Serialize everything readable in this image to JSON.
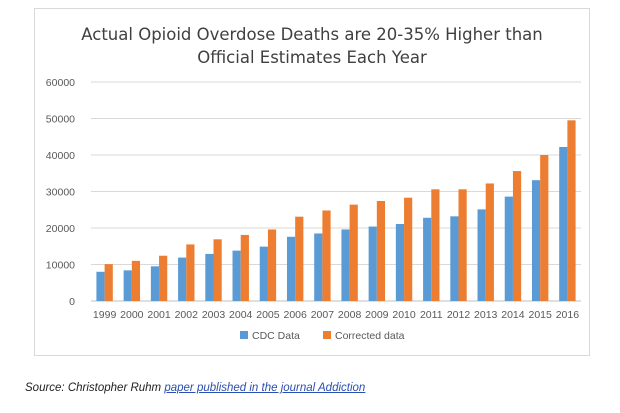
{
  "chart_data": {
    "type": "bar",
    "title_lines": [
      "Actual Opioid Overdose Deaths are 20-35% Higher than",
      "Official Estimates Each Year"
    ],
    "xlabel": "",
    "ylabel": "",
    "ylim": [
      0,
      60000
    ],
    "yticks": [
      0,
      10000,
      20000,
      30000,
      40000,
      50000,
      60000
    ],
    "grid": true,
    "legend_position": "bottom",
    "categories": [
      "1999",
      "2000",
      "2001",
      "2002",
      "2003",
      "2004",
      "2005",
      "2006",
      "2007",
      "2008",
      "2009",
      "2010",
      "2011",
      "2012",
      "2013",
      "2014",
      "2015",
      "2016"
    ],
    "series": [
      {
        "name": "CDC Data",
        "color": "#5b9bd5",
        "values": [
          8000,
          8400,
          9500,
          11900,
          12900,
          13800,
          14900,
          17600,
          18500,
          19600,
          20400,
          21100,
          22800,
          23200,
          25100,
          28600,
          33100,
          42200
        ]
      },
      {
        "name": "Corrected data",
        "color": "#ed7d31",
        "values": [
          10100,
          11000,
          12400,
          15500,
          16900,
          18100,
          19600,
          23100,
          24800,
          26400,
          27400,
          28300,
          30600,
          30600,
          32200,
          35600,
          40000,
          49500
        ]
      }
    ]
  },
  "source": {
    "prefix": "Source: Christopher Ruhm ",
    "link_text": "paper published in the journal Addiction"
  }
}
